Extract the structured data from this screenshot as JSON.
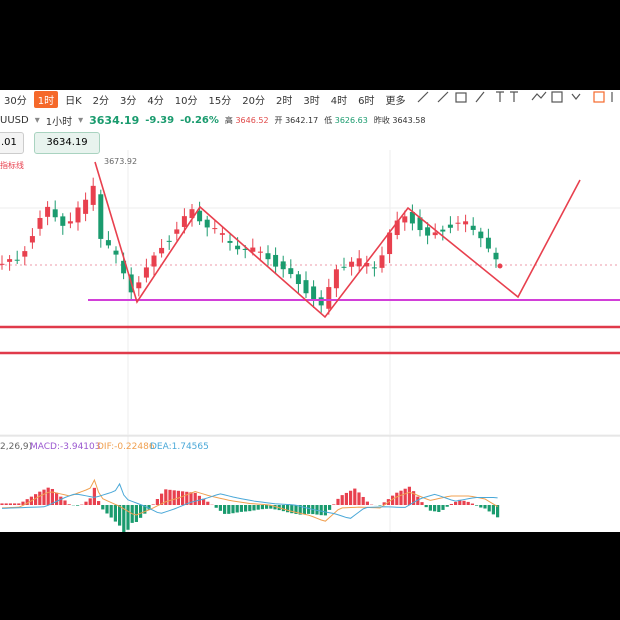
{
  "toolbar": {
    "timeframes": [
      "30分",
      "1时",
      "日K",
      "2分",
      "3分",
      "4分",
      "10分",
      "15分",
      "20分",
      "2时",
      "3时",
      "4时",
      "6时",
      "更多"
    ]
  },
  "quote": {
    "symbol": "UUSD",
    "interval": "1小时",
    "price": "3634.19",
    "change": "-9.39",
    "change_pct": "-0.26%",
    "high_label": "高",
    "high": "3646.52",
    "open_label": "开",
    "open": "3642.17",
    "low_label": "低",
    "low": "3626.63",
    "prev_label": "昨收",
    "prev": "3643.58"
  },
  "chart": {
    "left_box": ".01",
    "price_box": "3634.19",
    "peak_label": "3673.92",
    "indicator_note": "指标线"
  },
  "macd": {
    "params": "2,26,9)",
    "macd": "MACD:-3.94103",
    "dif": "DIF:-0.22486",
    "dea": "DEA:1.74565"
  }
}
